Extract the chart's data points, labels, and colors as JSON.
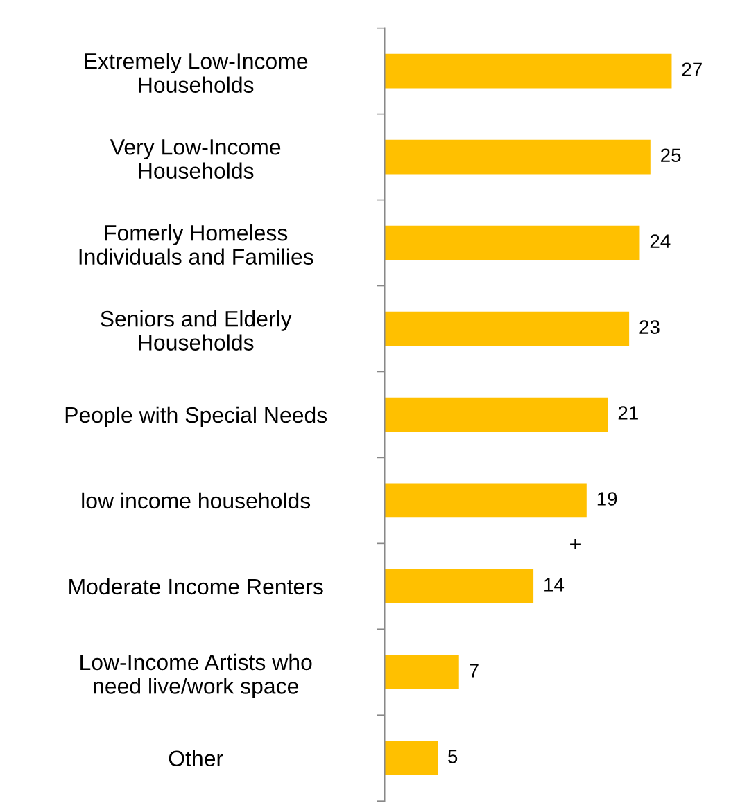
{
  "chart_data": {
    "type": "bar",
    "orientation": "horizontal",
    "categories": [
      "Extremely Low-Income\nHouseholds",
      "Very Low-Income\nHouseholds",
      "Fomerly Homeless\nIndividuals and Families",
      "Seniors and Elderly\nHouseholds",
      "People with Special Needs",
      "low income households",
      "Moderate Income Renters",
      "Low-Income Artists who\nneed live/work space",
      "Other"
    ],
    "values": [
      27,
      25,
      24,
      23,
      21,
      19,
      14,
      7,
      5
    ],
    "color": "#ffc000",
    "data_labels": true,
    "grid": false,
    "legend": false,
    "annotations": [
      "+"
    ]
  }
}
